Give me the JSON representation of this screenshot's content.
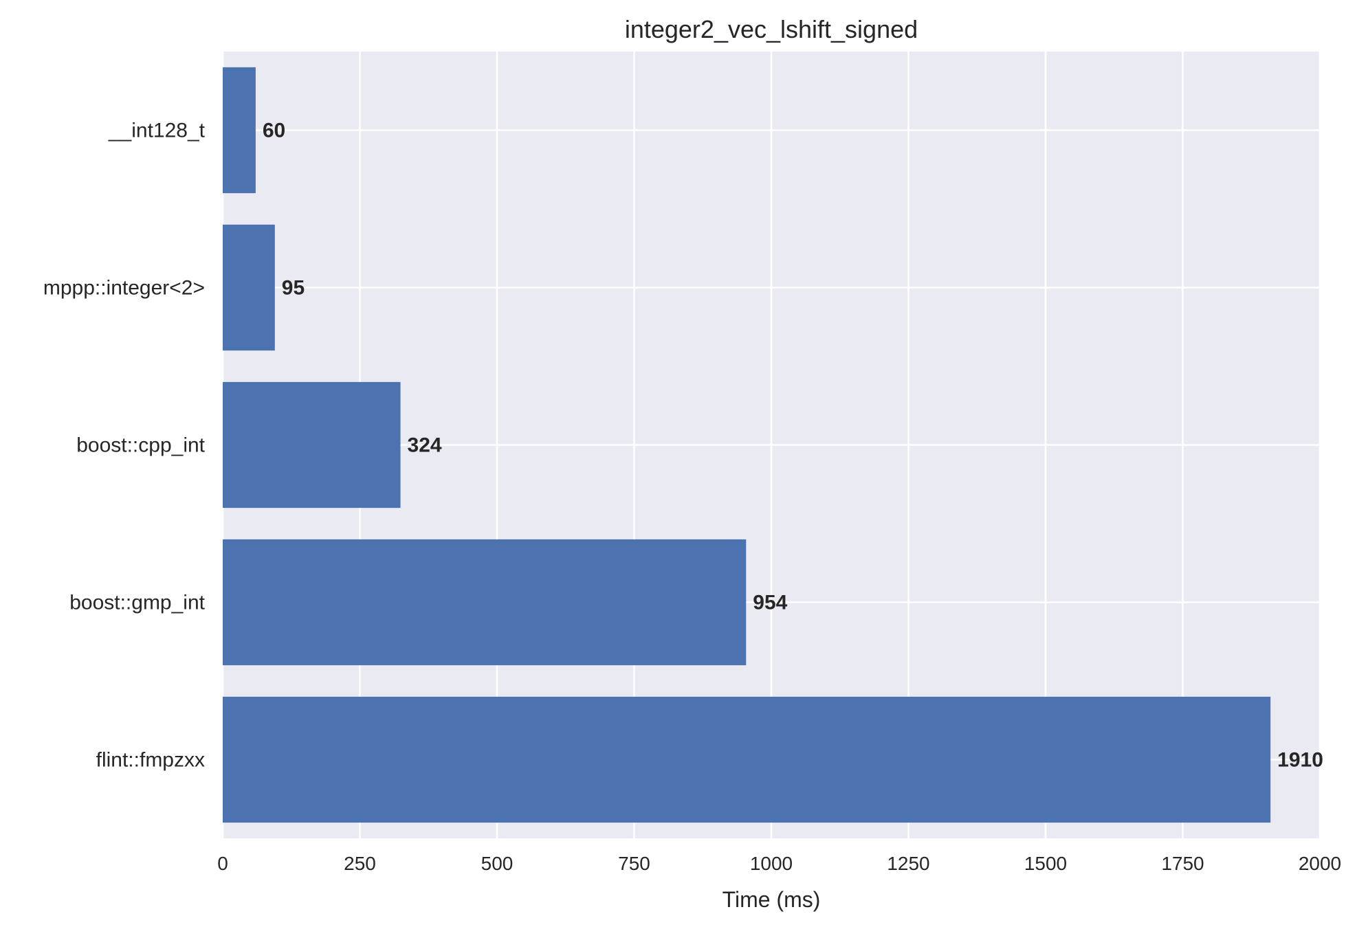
{
  "chart_data": {
    "type": "bar",
    "orientation": "horizontal",
    "title": "integer2_vec_lshift_signed",
    "xlabel": "Time (ms)",
    "ylabel": "",
    "categories": [
      "__int128_t",
      "mppp::integer<2>",
      "boost::cpp_int",
      "boost::gmp_int",
      "flint::fmpzxx"
    ],
    "values": [
      60,
      95,
      324,
      954,
      1910
    ],
    "data_labels": [
      "60",
      "95",
      "324",
      "954",
      "1910"
    ],
    "xlim": [
      0,
      2000
    ],
    "xticks": [
      0,
      250,
      500,
      750,
      1000,
      1250,
      1500,
      1750,
      2000
    ],
    "xtick_labels": [
      "0",
      "250",
      "500",
      "750",
      "1000",
      "1250",
      "1500",
      "1750",
      "2000"
    ],
    "grid": true,
    "colors": {
      "bar": "#4C72B0",
      "plot_background": "#EAEAF2",
      "grid": "#FFFFFF",
      "text": "#262626"
    }
  }
}
